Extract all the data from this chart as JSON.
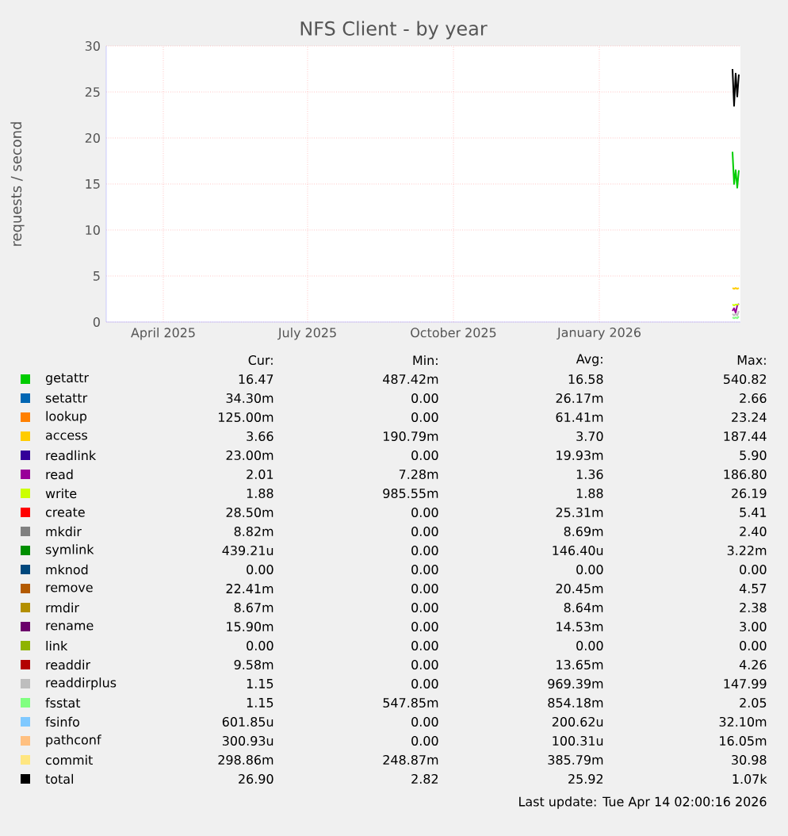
{
  "chart_data": {
    "type": "line",
    "title": "NFS Client - by year",
    "ylabel": "requests / second",
    "xlim": [
      "2025-03-11",
      "2026-04-15"
    ],
    "xticks": [
      {
        "value": "2025-04-16",
        "label": "April 2025"
      },
      {
        "value": "2025-07-16",
        "label": "July 2025"
      },
      {
        "value": "2025-10-16",
        "label": "October 2025"
      },
      {
        "value": "2026-01-16",
        "label": "January 2026"
      }
    ],
    "ylim": [
      0,
      30
    ],
    "yticks": [
      0,
      5,
      10,
      15,
      20,
      25,
      30
    ],
    "grid": true,
    "legend": "bottom",
    "marker": "none",
    "line_style": "solid",
    "x": [
      "2026-04-10",
      "2026-04-11",
      "2026-04-12",
      "2026-04-13",
      "2026-04-14"
    ],
    "series": [
      {
        "name": "getattr",
        "color": "#00cc00",
        "values": [
          18.5,
          15.0,
          16.5,
          14.6,
          16.5
        ]
      },
      {
        "name": "setattr",
        "color": "#0066b3",
        "values": [
          null,
          null,
          null,
          null,
          null
        ]
      },
      {
        "name": "lookup",
        "color": "#ff8000",
        "values": [
          null,
          null,
          null,
          null,
          null
        ]
      },
      {
        "name": "access",
        "color": "#ffcc00",
        "values": [
          3.7,
          3.6,
          3.7,
          3.6,
          3.7
        ]
      },
      {
        "name": "readlink",
        "color": "#330099",
        "values": [
          null,
          null,
          null,
          null,
          null
        ]
      },
      {
        "name": "read",
        "color": "#990099",
        "values": [
          1.2,
          1.5,
          1.0,
          1.8,
          2.0
        ]
      },
      {
        "name": "write",
        "color": "#ccff00",
        "values": [
          1.9,
          1.8,
          1.9,
          1.9,
          1.9
        ]
      },
      {
        "name": "create",
        "color": "#ff0000",
        "values": [
          null,
          null,
          null,
          null,
          null
        ]
      },
      {
        "name": "mkdir",
        "color": "#808080",
        "values": [
          null,
          null,
          null,
          null,
          null
        ]
      },
      {
        "name": "symlink",
        "color": "#008f00",
        "values": [
          null,
          null,
          null,
          null,
          null
        ]
      },
      {
        "name": "mknod",
        "color": "#00487d",
        "values": [
          null,
          null,
          null,
          null,
          null
        ]
      },
      {
        "name": "remove",
        "color": "#b35a00",
        "values": [
          null,
          null,
          null,
          null,
          null
        ]
      },
      {
        "name": "rmdir",
        "color": "#b38f00",
        "values": [
          null,
          null,
          null,
          null,
          null
        ]
      },
      {
        "name": "rename",
        "color": "#6b006b",
        "values": [
          null,
          null,
          null,
          null,
          null
        ]
      },
      {
        "name": "link",
        "color": "#8fb300",
        "values": [
          null,
          null,
          null,
          null,
          null
        ]
      },
      {
        "name": "readdir",
        "color": "#b30000",
        "values": [
          null,
          null,
          null,
          null,
          null
        ]
      },
      {
        "name": "readdirplus",
        "color": "#bebebe",
        "values": [
          0.9,
          0.7,
          0.9,
          0.7,
          1.2
        ]
      },
      {
        "name": "fsstat",
        "color": "#80ff80",
        "values": [
          0.5,
          0.4,
          0.5,
          0.4,
          0.6
        ]
      },
      {
        "name": "fsinfo",
        "color": "#80c9ff",
        "values": [
          null,
          null,
          null,
          null,
          null
        ]
      },
      {
        "name": "pathconf",
        "color": "#ffc080",
        "values": [
          null,
          null,
          null,
          null,
          null
        ]
      },
      {
        "name": "commit",
        "color": "#ffe680",
        "values": [
          null,
          null,
          null,
          null,
          null
        ]
      },
      {
        "name": "total",
        "color": "#000000",
        "values": [
          27.5,
          23.5,
          27.0,
          24.5,
          26.9
        ]
      }
    ],
    "annotations": [
      "Cur:",
      "Min:",
      "Avg:",
      "Max:",
      "16.47",
      "487.42m",
      "16.58",
      "540.82",
      "34.30m",
      "0.00",
      "26.17m",
      "2.66",
      "125.00m",
      "0.00",
      "61.41m",
      "23.24",
      "3.66",
      "190.79m",
      "3.70",
      "187.44",
      "23.00m",
      "0.00",
      "19.93m",
      "5.90",
      "2.01",
      "7.28m",
      "1.36",
      "186.80",
      "1.88",
      "985.55m",
      "1.88",
      "26.19",
      "28.50m",
      "0.00",
      "25.31m",
      "5.41",
      "8.82m",
      "0.00",
      "8.69m",
      "2.40",
      "439.21u",
      "0.00",
      "146.40u",
      "3.22m",
      "0.00",
      "0.00",
      "0.00",
      "0.00",
      "22.41m",
      "0.00",
      "20.45m",
      "4.57",
      "8.67m",
      "0.00",
      "8.64m",
      "2.38",
      "15.90m",
      "0.00",
      "14.53m",
      "3.00",
      "0.00",
      "0.00",
      "0.00",
      "0.00",
      "9.58m",
      "0.00",
      "13.65m",
      "4.26",
      "1.15",
      "0.00",
      "969.39m",
      "147.99",
      "1.15",
      "547.85m",
      "854.18m",
      "2.05",
      "601.85u",
      "0.00",
      "200.62u",
      "32.10m",
      "300.93u",
      "0.00",
      "100.31u",
      "16.05m",
      "298.86m",
      "248.87m",
      "385.79m",
      "30.98",
      "26.90",
      "2.82",
      "25.92",
      "1.07k",
      "Last update: Tue Apr 14 02:00:16 2026"
    ]
  }
}
